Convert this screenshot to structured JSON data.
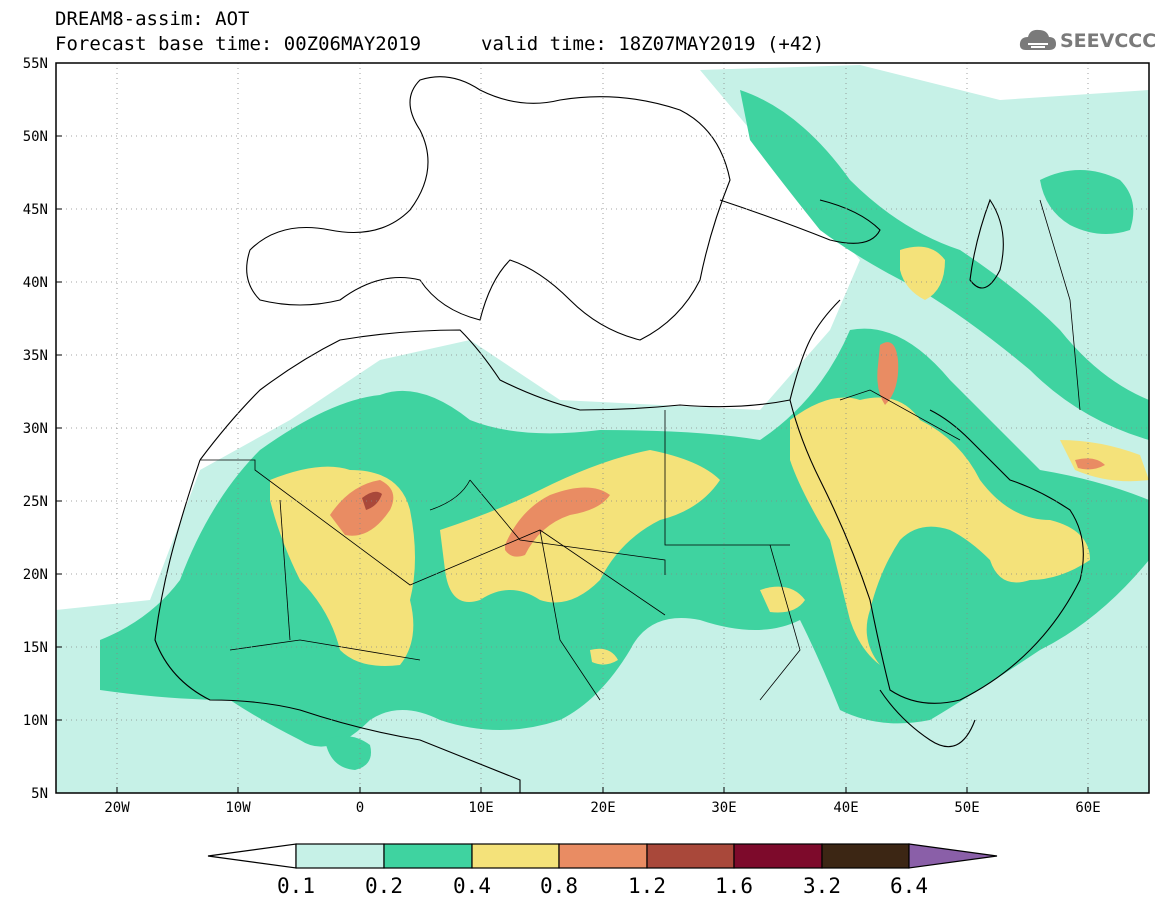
{
  "header": {
    "title": "DREAM8-assim: AOT",
    "base_time": "Forecast base time: 00Z06MAY2019",
    "valid_time": "valid time: 18Z07MAY2019 (+42)"
  },
  "logo": {
    "text": "SEEVCCC",
    "icon": "cloud-icon"
  },
  "map": {
    "lon_range": [
      -25,
      65
    ],
    "lat_range": [
      5,
      55
    ],
    "lat_ticks": [
      "5N",
      "10N",
      "15N",
      "20N",
      "25N",
      "30N",
      "35N",
      "40N",
      "45N",
      "50N",
      "55N"
    ],
    "lon_ticks": [
      "20W",
      "10W",
      "0",
      "10E",
      "20E",
      "30E",
      "40E",
      "50E",
      "60E"
    ],
    "gridlines": "dotted",
    "field": "Aerosol optical thickness"
  },
  "colorbar": {
    "levels": [
      "0.1",
      "0.2",
      "0.4",
      "0.8",
      "1.2",
      "1.6",
      "3.2",
      "6.4"
    ],
    "colors": [
      "#ffffff",
      "#c6f1e7",
      "#3fd3a0",
      "#f4e27a",
      "#e98c63",
      "#a9483a",
      "#7d0a2b",
      "#3c2614",
      "#8a5fa8"
    ]
  }
}
